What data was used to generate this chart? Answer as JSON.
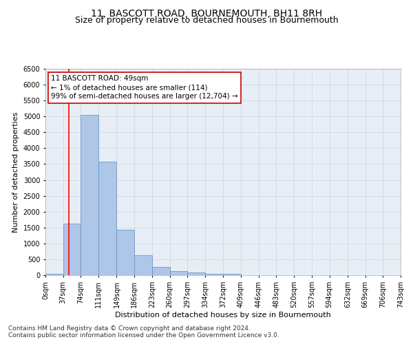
{
  "title": "11, BASCOTT ROAD, BOURNEMOUTH, BH11 8RH",
  "subtitle": "Size of property relative to detached houses in Bournemouth",
  "xlabel": "Distribution of detached houses by size in Bournemouth",
  "ylabel": "Number of detached properties",
  "footnote1": "Contains HM Land Registry data © Crown copyright and database right 2024.",
  "footnote2": "Contains public sector information licensed under the Open Government Licence v3.0.",
  "annotation_title": "11 BASCOTT ROAD: 49sqm",
  "annotation_line2": "← 1% of detached houses are smaller (114)",
  "annotation_line3": "99% of semi-detached houses are larger (12,704) →",
  "property_size": 49,
  "bar_bins": [
    0,
    37,
    74,
    111,
    149,
    186,
    223,
    260,
    297,
    334,
    372,
    409,
    446,
    483,
    520,
    557,
    594,
    632,
    669,
    706,
    743
  ],
  "bar_values": [
    50,
    1620,
    5050,
    3580,
    1430,
    620,
    260,
    130,
    80,
    50,
    40,
    0,
    0,
    0,
    0,
    0,
    0,
    0,
    0,
    0
  ],
  "bar_color": "#aec6e8",
  "bar_edge_color": "#5a8fc0",
  "red_line_x": 49,
  "ylim": [
    0,
    6500
  ],
  "yticks": [
    0,
    500,
    1000,
    1500,
    2000,
    2500,
    3000,
    3500,
    4000,
    4500,
    5000,
    5500,
    6000,
    6500
  ],
  "grid_color": "#c8d4e8",
  "background_color": "#e8eef5",
  "annotation_box_color": "#ffffff",
  "annotation_box_edge": "#cc0000",
  "title_fontsize": 10,
  "subtitle_fontsize": 9,
  "xlabel_fontsize": 8,
  "ylabel_fontsize": 8,
  "tick_fontsize": 7,
  "annotation_fontsize": 7.5,
  "footnote_fontsize": 6.5
}
